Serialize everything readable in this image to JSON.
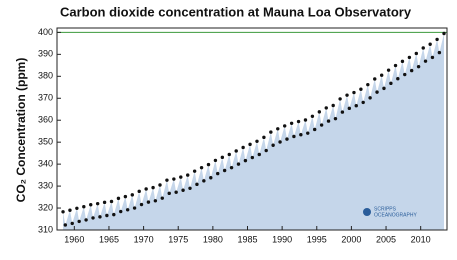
{
  "chart_data": {
    "type": "scatter-area",
    "title": "Carbon dioxide concentration at Mauna Loa Observatory",
    "ylabel": "CO₂ Concentration (ppm)",
    "logo": [
      "SCRIPPS",
      "OCEANOGRAPHY"
    ],
    "xlim": [
      1957.5,
      2013.8
    ],
    "xticks": [
      1960,
      1965,
      1970,
      1975,
      1980,
      1985,
      1990,
      1995,
      2000,
      2005,
      2010
    ],
    "ylim": [
      310,
      402
    ],
    "yticks": [
      310,
      320,
      330,
      340,
      350,
      360,
      370,
      380,
      390,
      400
    ],
    "reference_line": {
      "value": 400,
      "color": "#3c9a3c"
    },
    "area_color": "#c5d6ea",
    "color": "#111111",
    "x": [
      1958.37,
      1958.7,
      1959.37,
      1959.7,
      1960.37,
      1960.7,
      1961.37,
      1961.7,
      1962.37,
      1962.7,
      1963.37,
      1963.7,
      1964.37,
      1964.7,
      1965.37,
      1965.7,
      1966.37,
      1966.7,
      1967.37,
      1967.7,
      1968.37,
      1968.7,
      1969.37,
      1969.7,
      1970.37,
      1970.7,
      1971.37,
      1971.7,
      1972.37,
      1972.7,
      1973.37,
      1973.7,
      1974.37,
      1974.7,
      1975.37,
      1975.7,
      1976.37,
      1976.7,
      1977.37,
      1977.7,
      1978.37,
      1978.7,
      1979.37,
      1979.7,
      1980.37,
      1980.7,
      1981.37,
      1981.7,
      1982.37,
      1982.7,
      1983.37,
      1983.7,
      1984.37,
      1984.7,
      1985.37,
      1985.7,
      1986.37,
      1986.7,
      1987.37,
      1987.7,
      1988.37,
      1988.7,
      1989.37,
      1989.7,
      1990.37,
      1990.7,
      1991.37,
      1991.7,
      1992.37,
      1992.7,
      1993.37,
      1993.7,
      1994.37,
      1994.7,
      1995.37,
      1995.7,
      1996.37,
      1996.7,
      1997.37,
      1997.7,
      1998.37,
      1998.7,
      1999.37,
      1999.7,
      2000.37,
      2000.7,
      2001.37,
      2001.7,
      2002.37,
      2002.7,
      2003.37,
      2003.7,
      2004.37,
      2004.7,
      2005.37,
      2005.7,
      2006.37,
      2006.7,
      2007.37,
      2007.7,
      2008.37,
      2008.7,
      2009.37,
      2009.7,
      2010.37,
      2010.7,
      2011.37,
      2011.7,
      2012.37,
      2012.7,
      2013.37
    ],
    "values": [
      318.3,
      312.3,
      319.0,
      313.0,
      319.9,
      313.9,
      320.6,
      314.6,
      321.5,
      315.5,
      322.0,
      316.0,
      322.6,
      316.6,
      323.0,
      317.0,
      324.4,
      318.4,
      325.2,
      319.2,
      326.0,
      320.0,
      327.6,
      321.6,
      328.7,
      322.7,
      329.3,
      323.3,
      330.5,
      324.5,
      332.7,
      326.7,
      333.2,
      327.2,
      334.1,
      328.1,
      335.0,
      329.0,
      336.8,
      330.8,
      338.4,
      332.4,
      339.8,
      333.8,
      341.7,
      335.7,
      343.1,
      337.1,
      344.4,
      338.4,
      346.0,
      340.0,
      347.6,
      341.6,
      349.0,
      343.0,
      350.4,
      344.4,
      352.2,
      346.2,
      354.6,
      348.6,
      356.1,
      350.1,
      357.4,
      351.4,
      358.6,
      352.6,
      359.4,
      353.4,
      360.1,
      354.1,
      361.8,
      355.8,
      363.8,
      357.8,
      365.6,
      359.6,
      366.7,
      360.7,
      369.7,
      363.7,
      371.4,
      365.4,
      372.6,
      366.6,
      374.1,
      368.1,
      376.2,
      370.2,
      378.8,
      372.8,
      380.5,
      374.5,
      382.8,
      376.8,
      384.9,
      378.9,
      386.8,
      380.8,
      388.6,
      382.6,
      390.4,
      384.4,
      392.9,
      386.9,
      394.6,
      388.6,
      396.8,
      390.8,
      399.5
    ]
  }
}
